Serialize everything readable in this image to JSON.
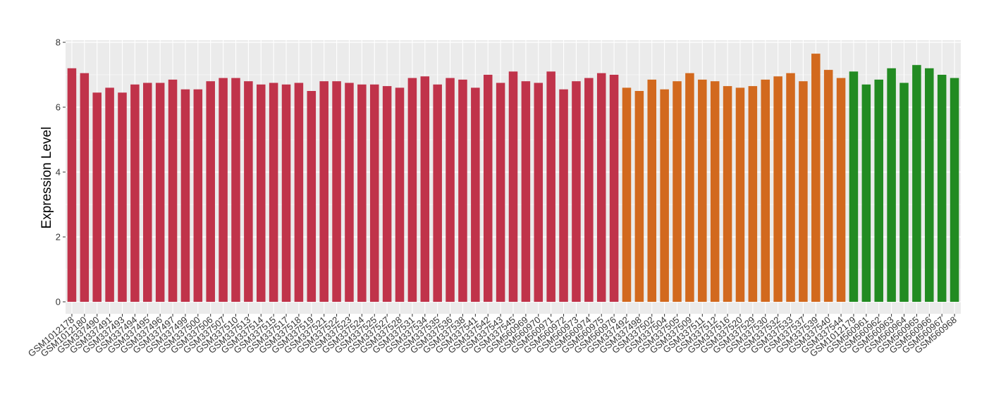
{
  "chart_data": {
    "type": "bar",
    "y_label": "Expression Level",
    "categories": [
      "GSM1012178",
      "GSM1012180",
      "GSM337490",
      "GSM337491",
      "GSM337493",
      "GSM337494",
      "GSM337495",
      "GSM337496",
      "GSM337497",
      "GSM337499",
      "GSM337500",
      "GSM337506",
      "GSM337507",
      "GSM337510",
      "GSM337513",
      "GSM337514",
      "GSM337515",
      "GSM337517",
      "GSM337518",
      "GSM337519",
      "GSM337521",
      "GSM337522",
      "GSM337523",
      "GSM337524",
      "GSM337525",
      "GSM337527",
      "GSM337528",
      "GSM337531",
      "GSM337534",
      "GSM337535",
      "GSM337536",
      "GSM337538",
      "GSM337541",
      "GSM337542",
      "GSM337543",
      "GSM337545",
      "GSM560969",
      "GSM560970",
      "GSM560971",
      "GSM560972",
      "GSM560973",
      "GSM560974",
      "GSM560975",
      "GSM560976",
      "GSM337492",
      "GSM337498",
      "GSM337502",
      "GSM337504",
      "GSM337505",
      "GSM337509",
      "GSM337511",
      "GSM337512",
      "GSM337516",
      "GSM337520",
      "GSM337529",
      "GSM337530",
      "GSM337532",
      "GSM337533",
      "GSM337537",
      "GSM337539",
      "GSM337540",
      "GSM337544",
      "GSM1012179",
      "GSM560961",
      "GSM560962",
      "GSM560963",
      "GSM560964",
      "GSM560965",
      "GSM560966",
      "GSM560967",
      "GSM560968"
    ],
    "values": [
      7.2,
      7.05,
      6.45,
      6.6,
      6.45,
      6.7,
      6.75,
      6.75,
      6.85,
      6.55,
      6.55,
      6.8,
      6.9,
      6.9,
      6.8,
      6.7,
      6.75,
      6.7,
      6.75,
      6.5,
      6.8,
      6.8,
      6.75,
      6.7,
      6.7,
      6.65,
      6.6,
      6.9,
      6.95,
      6.7,
      6.9,
      6.85,
      6.6,
      7.0,
      6.75,
      7.1,
      6.8,
      6.75,
      7.1,
      6.55,
      6.8,
      6.9,
      7.05,
      7.0,
      6.6,
      6.5,
      6.85,
      6.55,
      6.8,
      7.05,
      6.85,
      6.8,
      6.65,
      6.6,
      6.65,
      6.85,
      6.95,
      7.05,
      6.8,
      7.65,
      7.15,
      6.9,
      7.1,
      6.7,
      6.85,
      7.2,
      6.75,
      7.3,
      7.2,
      7.0,
      6.9
    ],
    "colors": [
      "#c0334a",
      "#c0334a",
      "#c0334a",
      "#c0334a",
      "#c0334a",
      "#c0334a",
      "#c0334a",
      "#c0334a",
      "#c0334a",
      "#c0334a",
      "#c0334a",
      "#c0334a",
      "#c0334a",
      "#c0334a",
      "#c0334a",
      "#c0334a",
      "#c0334a",
      "#c0334a",
      "#c0334a",
      "#c0334a",
      "#c0334a",
      "#c0334a",
      "#c0334a",
      "#c0334a",
      "#c0334a",
      "#c0334a",
      "#c0334a",
      "#c0334a",
      "#c0334a",
      "#c0334a",
      "#c0334a",
      "#c0334a",
      "#c0334a",
      "#c0334a",
      "#c0334a",
      "#c0334a",
      "#c0334a",
      "#c0334a",
      "#c0334a",
      "#c0334a",
      "#c0334a",
      "#c0334a",
      "#c0334a",
      "#c0334a",
      "#d2691e",
      "#d2691e",
      "#d2691e",
      "#d2691e",
      "#d2691e",
      "#d2691e",
      "#d2691e",
      "#d2691e",
      "#d2691e",
      "#d2691e",
      "#d2691e",
      "#d2691e",
      "#d2691e",
      "#d2691e",
      "#d2691e",
      "#d2691e",
      "#d2691e",
      "#d2691e",
      "#228b22",
      "#228b22",
      "#228b22",
      "#228b22",
      "#228b22",
      "#228b22",
      "#228b22",
      "#228b22",
      "#228b22"
    ],
    "ylim": [
      0,
      8
    ],
    "yticks": [
      0,
      2,
      4,
      6,
      8
    ],
    "grid": true
  }
}
